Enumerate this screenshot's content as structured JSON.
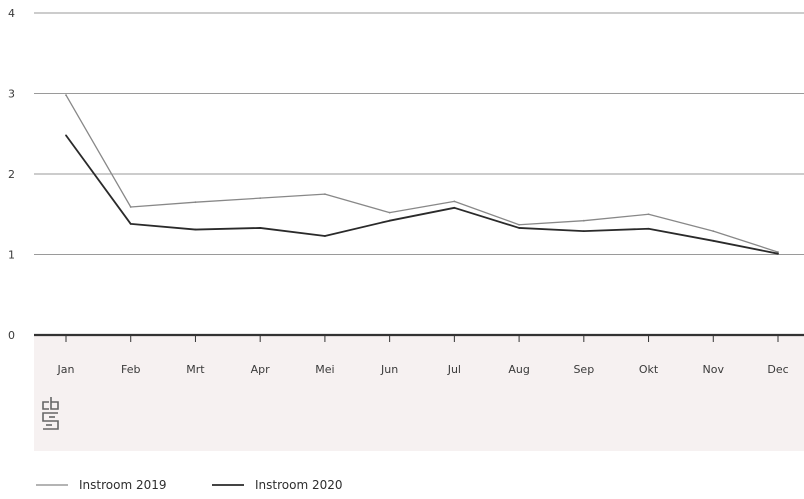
{
  "chart_data": {
    "type": "line",
    "categories": [
      "Jan",
      "Feb",
      "Mrt",
      "Apr",
      "Mei",
      "Jun",
      "Jul",
      "Aug",
      "Sep",
      "Okt",
      "Nov",
      "Dec"
    ],
    "series": [
      {
        "name": "Instroom 2019",
        "values": [
          2.98,
          1.59,
          1.65,
          1.7,
          1.75,
          1.52,
          1.66,
          1.37,
          1.42,
          1.5,
          1.29,
          1.03
        ],
        "color": "#888888"
      },
      {
        "name": "Instroom 2020",
        "values": [
          2.48,
          1.38,
          1.31,
          1.33,
          1.23,
          1.42,
          1.58,
          1.33,
          1.29,
          1.32,
          1.17,
          1.01
        ],
        "color": "#2a2a2a"
      }
    ],
    "y_ticks": [
      "0",
      "1",
      "2",
      "3",
      "4"
    ],
    "ylim": [
      0,
      4
    ],
    "grid": true,
    "legend_position": "bottom-left",
    "colors": {
      "grid": "#9a9a9a",
      "axis": "#333333",
      "band": "#f6f1f1"
    },
    "logo": "cbs"
  }
}
